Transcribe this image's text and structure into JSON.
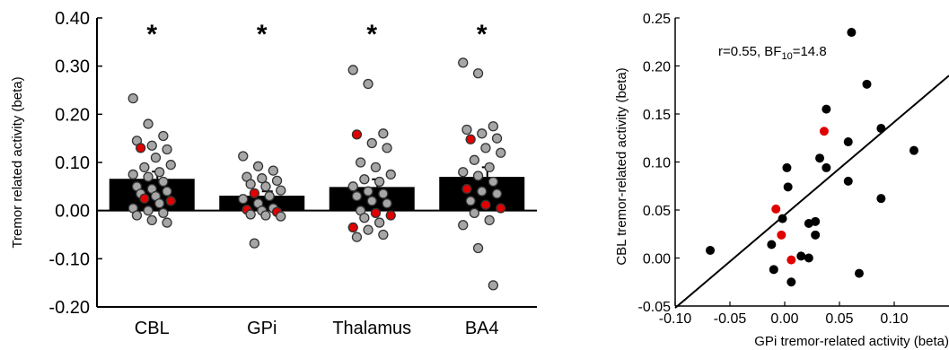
{
  "chart_data": [
    {
      "type": "bar",
      "ylabel": "Tremor related activity (beta)",
      "ylim": [
        -0.2,
        0.4
      ],
      "yticks": [
        -0.2,
        -0.1,
        0.0,
        0.1,
        0.2,
        0.3,
        0.4
      ],
      "ytick_labels": [
        "-0.20",
        "-0.10",
        "0.00",
        "0.10",
        "0.20",
        "0.30",
        "0.40"
      ],
      "categories": [
        "CBL",
        "GPi",
        "Thalamus",
        "BA4"
      ],
      "values": [
        0.066,
        0.031,
        0.049,
        0.07
      ],
      "errors": [
        0.015,
        0.009,
        0.016,
        0.02
      ],
      "annotations": [
        "*",
        "*",
        "*",
        "*"
      ],
      "bar_color": "#000000",
      "point_colors": {
        "grey": "#a6a6a6",
        "red": "#e00000"
      },
      "points": [
        [
          {
            "v": 0.233,
            "c": "grey"
          },
          {
            "v": 0.18,
            "c": "grey"
          },
          {
            "v": 0.155,
            "c": "grey"
          },
          {
            "v": 0.145,
            "c": "grey"
          },
          {
            "v": 0.135,
            "c": "grey"
          },
          {
            "v": 0.127,
            "c": "grey"
          },
          {
            "v": 0.13,
            "c": "red"
          },
          {
            "v": 0.11,
            "c": "grey"
          },
          {
            "v": 0.095,
            "c": "grey"
          },
          {
            "v": 0.09,
            "c": "grey"
          },
          {
            "v": 0.08,
            "c": "grey"
          },
          {
            "v": 0.075,
            "c": "grey"
          },
          {
            "v": 0.07,
            "c": "grey"
          },
          {
            "v": 0.06,
            "c": "grey"
          },
          {
            "v": 0.05,
            "c": "grey"
          },
          {
            "v": 0.045,
            "c": "grey"
          },
          {
            "v": 0.04,
            "c": "grey"
          },
          {
            "v": 0.035,
            "c": "grey"
          },
          {
            "v": 0.03,
            "c": "grey"
          },
          {
            "v": 0.02,
            "c": "red"
          },
          {
            "v": 0.025,
            "c": "red"
          },
          {
            "v": 0.015,
            "c": "grey"
          },
          {
            "v": 0.005,
            "c": "grey"
          },
          {
            "v": 0.0,
            "c": "grey"
          },
          {
            "v": -0.005,
            "c": "grey"
          },
          {
            "v": -0.01,
            "c": "grey"
          },
          {
            "v": -0.02,
            "c": "grey"
          },
          {
            "v": -0.025,
            "c": "grey"
          }
        ],
        [
          {
            "v": 0.113,
            "c": "grey"
          },
          {
            "v": 0.092,
            "c": "grey"
          },
          {
            "v": 0.083,
            "c": "grey"
          },
          {
            "v": 0.07,
            "c": "grey"
          },
          {
            "v": 0.067,
            "c": "grey"
          },
          {
            "v": 0.062,
            "c": "grey"
          },
          {
            "v": 0.055,
            "c": "grey"
          },
          {
            "v": 0.05,
            "c": "grey"
          },
          {
            "v": 0.042,
            "c": "grey"
          },
          {
            "v": 0.036,
            "c": "red"
          },
          {
            "v": 0.03,
            "c": "grey"
          },
          {
            "v": 0.024,
            "c": "grey"
          },
          {
            "v": 0.015,
            "c": "grey"
          },
          {
            "v": 0.005,
            "c": "grey"
          },
          {
            "v": 0.002,
            "c": "red"
          },
          {
            "v": 0.0,
            "c": "grey"
          },
          {
            "v": -0.003,
            "c": "red"
          },
          {
            "v": -0.008,
            "c": "grey"
          },
          {
            "v": -0.01,
            "c": "grey"
          },
          {
            "v": -0.012,
            "c": "grey"
          },
          {
            "v": -0.068,
            "c": "grey"
          }
        ],
        [
          {
            "v": 0.292,
            "c": "grey"
          },
          {
            "v": 0.263,
            "c": "grey"
          },
          {
            "v": 0.16,
            "c": "grey"
          },
          {
            "v": 0.158,
            "c": "red"
          },
          {
            "v": 0.14,
            "c": "grey"
          },
          {
            "v": 0.13,
            "c": "grey"
          },
          {
            "v": 0.1,
            "c": "grey"
          },
          {
            "v": 0.09,
            "c": "grey"
          },
          {
            "v": 0.075,
            "c": "grey"
          },
          {
            "v": 0.065,
            "c": "grey"
          },
          {
            "v": 0.06,
            "c": "grey"
          },
          {
            "v": 0.05,
            "c": "grey"
          },
          {
            "v": 0.04,
            "c": "grey"
          },
          {
            "v": 0.035,
            "c": "grey"
          },
          {
            "v": 0.03,
            "c": "grey"
          },
          {
            "v": 0.02,
            "c": "grey"
          },
          {
            "v": 0.015,
            "c": "grey"
          },
          {
            "v": 0.0,
            "c": "grey"
          },
          {
            "v": -0.005,
            "c": "red"
          },
          {
            "v": -0.01,
            "c": "red"
          },
          {
            "v": -0.015,
            "c": "grey"
          },
          {
            "v": -0.025,
            "c": "grey"
          },
          {
            "v": -0.035,
            "c": "red"
          },
          {
            "v": -0.04,
            "c": "grey"
          },
          {
            "v": -0.05,
            "c": "grey"
          },
          {
            "v": -0.055,
            "c": "grey"
          }
        ],
        [
          {
            "v": 0.307,
            "c": "grey"
          },
          {
            "v": 0.285,
            "c": "grey"
          },
          {
            "v": 0.175,
            "c": "grey"
          },
          {
            "v": 0.168,
            "c": "grey"
          },
          {
            "v": 0.16,
            "c": "grey"
          },
          {
            "v": 0.15,
            "c": "grey"
          },
          {
            "v": 0.148,
            "c": "red"
          },
          {
            "v": 0.13,
            "c": "grey"
          },
          {
            "v": 0.12,
            "c": "grey"
          },
          {
            "v": 0.105,
            "c": "grey"
          },
          {
            "v": 0.09,
            "c": "grey"
          },
          {
            "v": 0.08,
            "c": "grey"
          },
          {
            "v": 0.072,
            "c": "grey"
          },
          {
            "v": 0.06,
            "c": "grey"
          },
          {
            "v": 0.045,
            "c": "red"
          },
          {
            "v": 0.04,
            "c": "grey"
          },
          {
            "v": 0.035,
            "c": "grey"
          },
          {
            "v": 0.02,
            "c": "grey"
          },
          {
            "v": 0.012,
            "c": "red"
          },
          {
            "v": 0.005,
            "c": "red"
          },
          {
            "v": -0.005,
            "c": "grey"
          },
          {
            "v": -0.02,
            "c": "grey"
          },
          {
            "v": -0.03,
            "c": "grey"
          },
          {
            "v": -0.078,
            "c": "grey"
          },
          {
            "v": -0.155,
            "c": "grey"
          }
        ]
      ]
    },
    {
      "type": "scatter",
      "xlabel": "GPi tremor-related activity (beta)",
      "ylabel": "CBL tremor-related activity (beta)",
      "xlim": [
        -0.1,
        0.15
      ],
      "ylim": [
        -0.05,
        0.25
      ],
      "xticks": [
        -0.1,
        -0.05,
        0.0,
        0.05,
        0.1
      ],
      "xtick_labels": [
        "-0.10",
        "-0.05",
        "0.00",
        "0.05",
        "0.10"
      ],
      "yticks": [
        -0.05,
        0.0,
        0.05,
        0.1,
        0.15,
        0.2,
        0.25
      ],
      "ytick_labels": [
        "-0.05",
        "0.00",
        "0.05",
        "0.10",
        "0.15",
        "0.20",
        "0.25"
      ],
      "annotation": {
        "prefix": "r=0.55, BF",
        "subscript": "10",
        "suffix": "=14.8"
      },
      "fit_line": {
        "x": [
          -0.1,
          0.15
        ],
        "y": [
          -0.052,
          0.19
        ]
      },
      "point_colors": {
        "black": "#000000",
        "red": "#e00000"
      },
      "points": [
        {
          "x": -0.068,
          "y": 0.008,
          "c": "black"
        },
        {
          "x": -0.012,
          "y": 0.014,
          "c": "black"
        },
        {
          "x": -0.01,
          "y": -0.012,
          "c": "black"
        },
        {
          "x": -0.008,
          "y": 0.051,
          "c": "red"
        },
        {
          "x": -0.003,
          "y": 0.024,
          "c": "red"
        },
        {
          "x": -0.002,
          "y": 0.041,
          "c": "black"
        },
        {
          "x": 0.002,
          "y": 0.094,
          "c": "black"
        },
        {
          "x": 0.003,
          "y": 0.074,
          "c": "black"
        },
        {
          "x": 0.006,
          "y": -0.002,
          "c": "red"
        },
        {
          "x": 0.006,
          "y": -0.025,
          "c": "black"
        },
        {
          "x": 0.015,
          "y": 0.002,
          "c": "black"
        },
        {
          "x": 0.022,
          "y": 0.0,
          "c": "black"
        },
        {
          "x": 0.022,
          "y": 0.036,
          "c": "black"
        },
        {
          "x": 0.028,
          "y": 0.038,
          "c": "black"
        },
        {
          "x": 0.028,
          "y": 0.024,
          "c": "black"
        },
        {
          "x": 0.032,
          "y": 0.104,
          "c": "black"
        },
        {
          "x": 0.036,
          "y": 0.132,
          "c": "red"
        },
        {
          "x": 0.038,
          "y": 0.155,
          "c": "black"
        },
        {
          "x": 0.038,
          "y": 0.094,
          "c": "black"
        },
        {
          "x": 0.058,
          "y": 0.121,
          "c": "black"
        },
        {
          "x": 0.058,
          "y": 0.08,
          "c": "black"
        },
        {
          "x": 0.061,
          "y": 0.235,
          "c": "black"
        },
        {
          "x": 0.068,
          "y": -0.016,
          "c": "black"
        },
        {
          "x": 0.075,
          "y": 0.181,
          "c": "black"
        },
        {
          "x": 0.088,
          "y": 0.135,
          "c": "black"
        },
        {
          "x": 0.088,
          "y": 0.062,
          "c": "black"
        },
        {
          "x": 0.118,
          "y": 0.112,
          "c": "black"
        }
      ]
    }
  ]
}
